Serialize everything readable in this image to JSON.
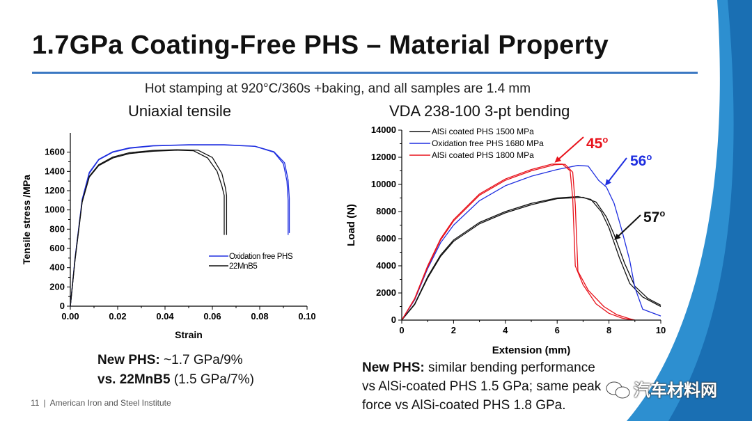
{
  "slide": {
    "title": "1.7GPa Coating-Free PHS – Material Property",
    "subtitle": "Hot stamping at 920°C/360s +baking, and all samples are 1.4 mm",
    "footer_page": "11",
    "footer_sep": "|",
    "footer_org": "American Iron and Steel Institute",
    "watermark": "汽车材料网",
    "colors": {
      "rule": "#3b78c2",
      "black": "#111111",
      "blue": "#1f2fe0",
      "red": "#e8121b"
    }
  },
  "left_chart": {
    "section_title": "Uniaxial tensile",
    "note_line1_bold": "New PHS:",
    "note_line1_rest": " ~1.7 GPa/9%",
    "note_line2_bold": "vs. 22MnB5",
    "note_line2_rest": " (1.5 GPa/7%)"
  },
  "right_chart": {
    "section_title": "VDA 238-100 3-pt bending",
    "note_line1_bold": "New PHS:",
    "note_line1_rest": " similar bending performance",
    "note_line2": "vs AlSi-coated PHS 1.5 GPa; same peak",
    "note_line3": "force vs AlSi-coated PHS 1.8 GPa."
  },
  "chart_data": [
    {
      "type": "line",
      "title": "Uniaxial tensile",
      "xlabel": "Strain",
      "ylabel": "Tensile stress /MPa",
      "xlim": [
        0,
        0.1
      ],
      "ylim": [
        0,
        1800
      ],
      "xticks": [
        0,
        0.02,
        0.04,
        0.06,
        0.08,
        0.1
      ],
      "xtick_labels": [
        "0.00",
        "0.02",
        "0.04",
        "0.06",
        "0.08",
        "0.10"
      ],
      "yticks": [
        0,
        200,
        400,
        600,
        800,
        1000,
        1200,
        1400,
        1600
      ],
      "ytick_labels": [
        "0",
        "200",
        "400",
        "600",
        "800",
        "1000",
        "1200",
        "1400",
        "1600"
      ],
      "legend": [
        "Oxidation free PHS",
        "22MnB5"
      ],
      "legend_position": "lower-right",
      "series": [
        {
          "name": "Oxidation free PHS",
          "color": "#1f2fe0",
          "x": [
            0,
            0.002,
            0.005,
            0.008,
            0.012,
            0.018,
            0.025,
            0.035,
            0.05,
            0.065,
            0.078,
            0.086,
            0.09,
            0.0915,
            0.092,
            0.092
          ],
          "y": [
            0,
            500,
            1100,
            1380,
            1520,
            1600,
            1640,
            1665,
            1675,
            1675,
            1660,
            1600,
            1480,
            1300,
            1100,
            740
          ]
        },
        {
          "name": "Oxidation free PHS (repeat)",
          "color": "#1f2fe0",
          "x": [
            0,
            0.002,
            0.005,
            0.008,
            0.012,
            0.018,
            0.025,
            0.035,
            0.05,
            0.065,
            0.078,
            0.086,
            0.0905,
            0.092,
            0.0925,
            0.0925
          ],
          "y": [
            0,
            500,
            1110,
            1390,
            1525,
            1605,
            1645,
            1668,
            1678,
            1678,
            1662,
            1605,
            1490,
            1310,
            1120,
            760
          ]
        },
        {
          "name": "22MnB5",
          "color": "#111111",
          "x": [
            0,
            0.002,
            0.005,
            0.008,
            0.012,
            0.018,
            0.025,
            0.035,
            0.045,
            0.052,
            0.058,
            0.062,
            0.064,
            0.065,
            0.065
          ],
          "y": [
            0,
            480,
            1080,
            1340,
            1460,
            1540,
            1585,
            1610,
            1620,
            1615,
            1540,
            1400,
            1250,
            1150,
            740
          ]
        },
        {
          "name": "22MnB5 (repeat)",
          "color": "#111111",
          "x": [
            0,
            0.002,
            0.005,
            0.008,
            0.012,
            0.018,
            0.025,
            0.035,
            0.045,
            0.054,
            0.06,
            0.064,
            0.0655,
            0.066,
            0.066
          ],
          "y": [
            0,
            490,
            1090,
            1350,
            1470,
            1550,
            1595,
            1618,
            1625,
            1620,
            1545,
            1380,
            1230,
            1150,
            740
          ]
        }
      ]
    },
    {
      "type": "line",
      "title": "VDA 238-100 3-pt bending",
      "xlabel": "Extension (mm)",
      "ylabel": "Load (N)",
      "xlim": [
        0,
        10
      ],
      "ylim": [
        0,
        14000
      ],
      "xticks": [
        0,
        2,
        4,
        6,
        8,
        10
      ],
      "xtick_labels": [
        "0",
        "2",
        "4",
        "6",
        "8",
        "10"
      ],
      "yticks": [
        0,
        2000,
        4000,
        6000,
        8000,
        10000,
        12000,
        14000
      ],
      "ytick_labels": [
        "0",
        "2000",
        "4000",
        "6000",
        "8000",
        "10000",
        "12000",
        "14000"
      ],
      "legend": [
        "AlSi coated PHS 1500 MPa",
        "Oxidation free PHS 1680 MPa",
        "AlSi coated PHS 1800 MPa"
      ],
      "legend_position": "top-left",
      "annotations": [
        {
          "text": "45",
          "sup": "o",
          "color": "#e8121b",
          "x": 5.9,
          "y": 11500
        },
        {
          "text": "56",
          "sup": "o",
          "color": "#1f2fe0",
          "x": 7.7,
          "y": 10000
        },
        {
          "text": "57",
          "sup": "o",
          "color": "#111111",
          "x": 8.2,
          "y": 5900
        }
      ],
      "series": [
        {
          "name": "AlSi coated PHS 1500 MPa",
          "color": "#111111",
          "x": [
            0,
            0.5,
            1,
            1.5,
            2,
            3,
            4,
            5,
            6,
            6.8,
            7.3,
            7.7,
            8.0,
            8.4,
            8.8,
            9.3,
            10
          ],
          "y": [
            0,
            1200,
            3200,
            4800,
            5900,
            7200,
            8000,
            8600,
            9000,
            9100,
            8900,
            8000,
            6800,
            4600,
            2700,
            1700,
            1000
          ]
        },
        {
          "name": "AlSi coated PHS 1500 MPa (repeat)",
          "color": "#111111",
          "x": [
            0,
            0.5,
            1,
            1.5,
            2,
            3,
            4,
            5,
            6,
            7.0,
            7.5,
            7.9,
            8.2,
            8.6,
            9.0,
            9.5,
            10
          ],
          "y": [
            0,
            1150,
            3100,
            4700,
            5800,
            7100,
            7900,
            8500,
            8950,
            9050,
            8700,
            7600,
            6300,
            4200,
            2500,
            1600,
            1100
          ]
        },
        {
          "name": "Oxidation free PHS 1680 MPa",
          "color": "#1f2fe0",
          "x": [
            0,
            0.5,
            1,
            1.5,
            2,
            3,
            4,
            5,
            6,
            6.8,
            7.2,
            7.6,
            7.9,
            8.2,
            8.5,
            8.8,
            9.0,
            9.3,
            10
          ],
          "y": [
            0,
            1500,
            3800,
            5700,
            7000,
            8800,
            9900,
            10600,
            11100,
            11400,
            11350,
            10300,
            9800,
            8600,
            6600,
            4400,
            2400,
            800,
            300
          ]
        },
        {
          "name": "AlSi coated PHS 1800 MPa",
          "color": "#e8121b",
          "x": [
            0,
            0.5,
            1,
            1.5,
            2,
            3,
            4,
            5,
            5.8,
            6.2,
            6.5,
            6.6,
            6.7,
            7.0,
            7.5,
            8.0,
            8.5,
            8.9
          ],
          "y": [
            0,
            1600,
            4000,
            6000,
            7400,
            9300,
            10400,
            11100,
            11500,
            11500,
            11000,
            9000,
            4000,
            2600,
            1200,
            500,
            150,
            0
          ]
        },
        {
          "name": "AlSi coated PHS 1800 MPa (repeat)",
          "color": "#e8121b",
          "x": [
            0,
            0.5,
            1,
            1.5,
            2,
            3,
            4,
            5,
            5.9,
            6.3,
            6.6,
            6.7,
            6.8,
            7.2,
            7.8,
            8.3,
            8.8,
            9.0
          ],
          "y": [
            0,
            1550,
            3900,
            5900,
            7300,
            9200,
            10300,
            11000,
            11450,
            11480,
            10900,
            8500,
            3600,
            2200,
            1000,
            400,
            100,
            0
          ]
        }
      ]
    }
  ]
}
